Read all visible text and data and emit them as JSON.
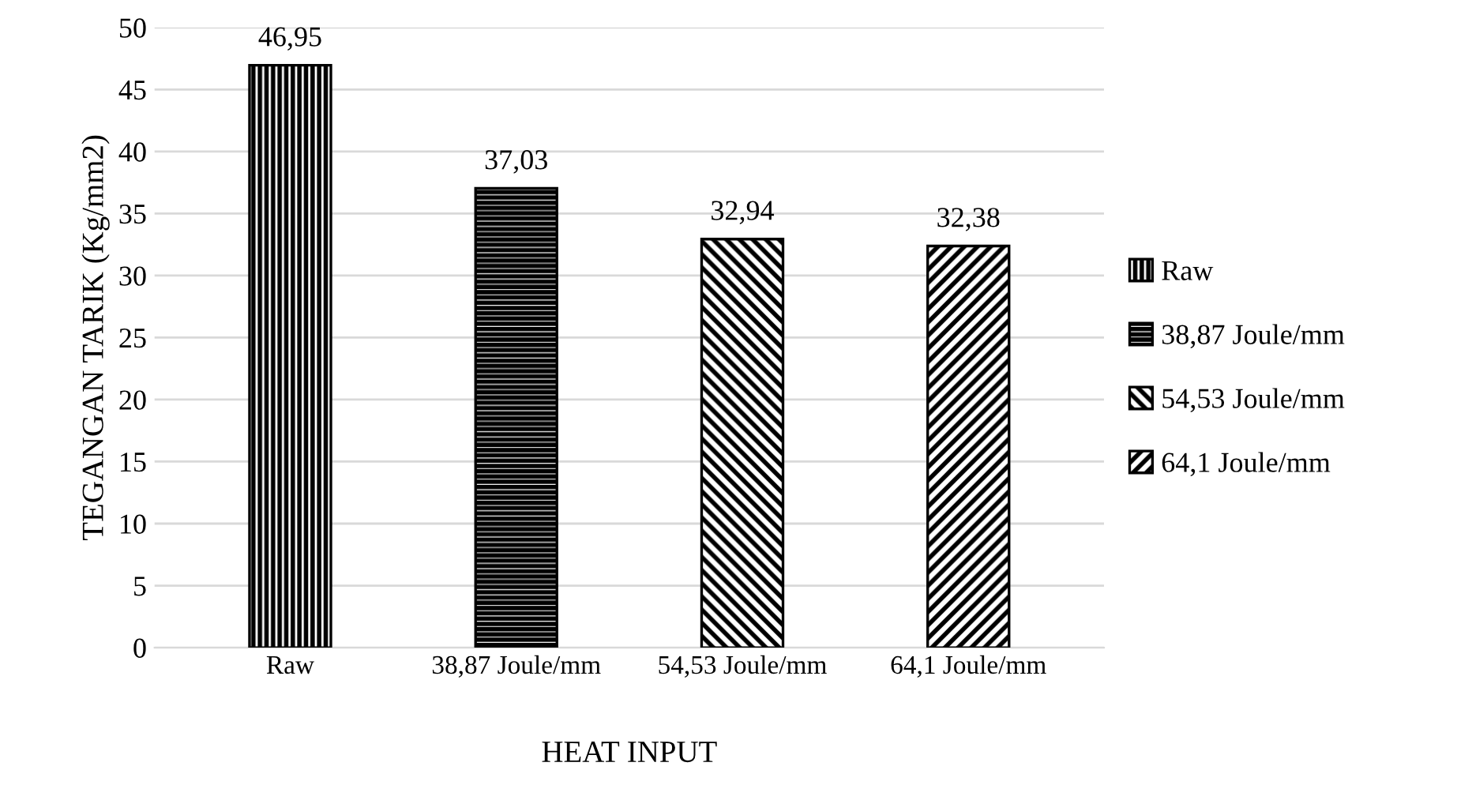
{
  "chart_data": {
    "type": "bar",
    "xlabel": "HEAT INPUT",
    "ylabel": "TEGANGAN TARIK (Kg/mm2)",
    "categories": [
      "Raw",
      "38,87 Joule/mm",
      "54,53 Joule/mm",
      "64,1 Joule/mm"
    ],
    "series": [
      {
        "name": "Raw",
        "color": "#000000",
        "values": [
          46.95,
          null,
          null,
          null
        ],
        "value_labels": [
          "46,95",
          null,
          null,
          null
        ]
      },
      {
        "name": "38,87 Joule/mm",
        "color": "#000000",
        "values": [
          null,
          37.03,
          null,
          null
        ],
        "value_labels": [
          null,
          "37,03",
          null,
          null
        ]
      },
      {
        "name": "54,53 Joule/mm",
        "color": "#000000",
        "values": [
          null,
          null,
          32.94,
          null
        ],
        "value_labels": [
          null,
          null,
          "32,94",
          null
        ]
      },
      {
        "name": "64,1 Joule/mm",
        "color": "#000000",
        "values": [
          null,
          null,
          null,
          32.38
        ],
        "value_labels": [
          null,
          null,
          null,
          "32,38"
        ]
      }
    ],
    "ylim": [
      0,
      50
    ],
    "yticks": [
      0,
      5,
      10,
      15,
      20,
      25,
      30,
      35,
      40,
      45,
      50
    ],
    "grid": "y",
    "legend": "right"
  }
}
